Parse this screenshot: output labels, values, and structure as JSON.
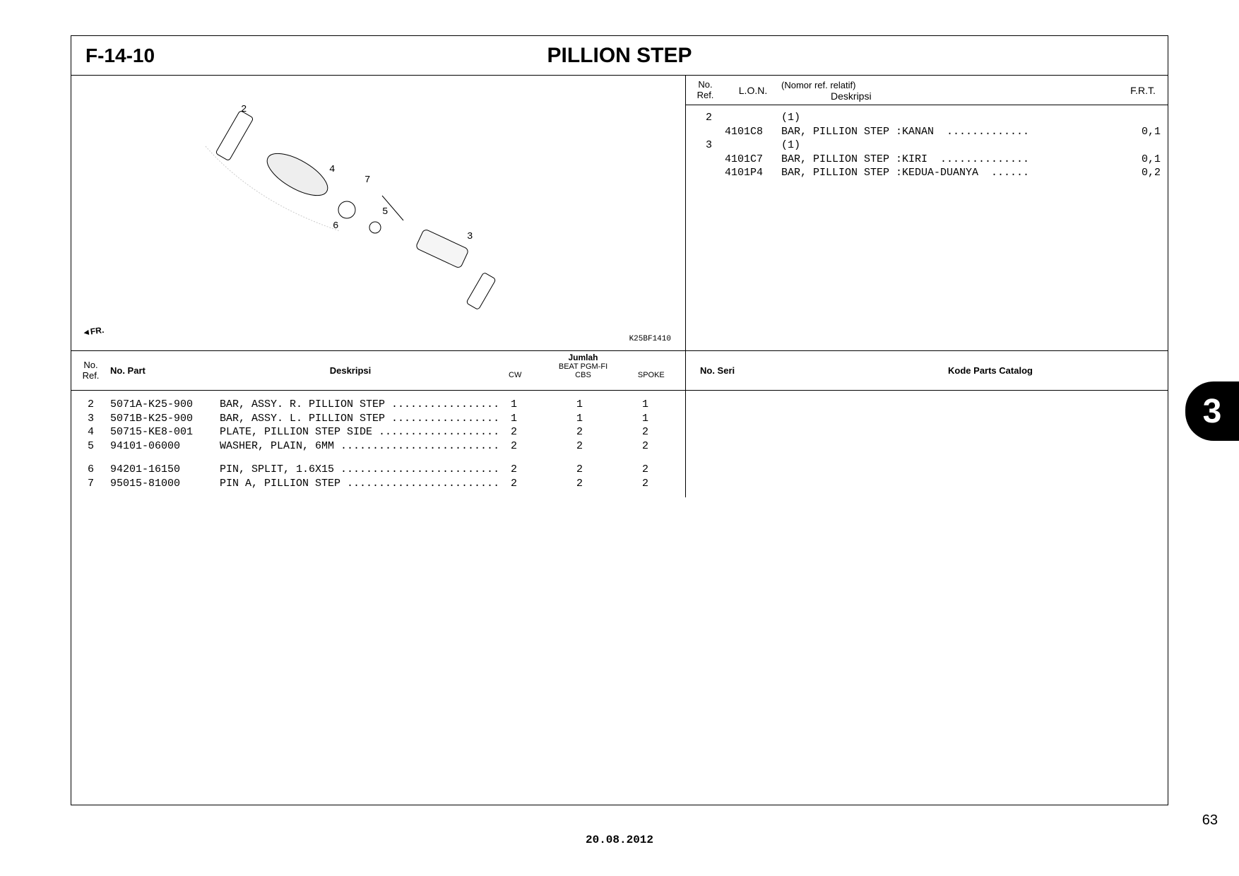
{
  "section_code": "F-14-10",
  "section_title": "PILLION STEP",
  "diagram_code": "K25BF1410",
  "fr_label": "FR.",
  "diagram_callouts": [
    "2",
    "3",
    "4",
    "5",
    "6",
    "7"
  ],
  "ref_header": {
    "no": "No.\nRef.",
    "lon": "L.O.N.",
    "nomor": "(Nomor ref. relatif)",
    "deskripsi": "Deskripsi",
    "frt": "F.R.T."
  },
  "ref_rows": [
    {
      "no": "2",
      "lon": "",
      "desc": "(1)",
      "frt": ""
    },
    {
      "no": "",
      "lon": "4101C8",
      "desc": "BAR, PILLION STEP :KANAN  .............",
      "frt": "0,1"
    },
    {
      "no": "3",
      "lon": "",
      "desc": "(1)",
      "frt": ""
    },
    {
      "no": "",
      "lon": "4101C7",
      "desc": "BAR, PILLION STEP :KIRI  ..............",
      "frt": "0,1"
    },
    {
      "no": "",
      "lon": "4101P4",
      "desc": "BAR, PILLION STEP :KEDUA-DUANYA  ......",
      "frt": "0,2"
    }
  ],
  "parts_header": {
    "no": "No.\nRef.",
    "part": "No. Part",
    "desc": "Deskripsi",
    "qty_top": "Jumlah",
    "qty_mid": "BEAT PGM-FI",
    "qty_cols": [
      "CW",
      "CBS",
      "SPOKE"
    ]
  },
  "parts_rows": [
    {
      "no": "2",
      "part": "5071A-K25-900",
      "desc": "BAR, ASSY. R. PILLION STEP .................",
      "q": [
        "1",
        "1",
        "1"
      ]
    },
    {
      "no": "3",
      "part": "5071B-K25-900",
      "desc": "BAR, ASSY. L. PILLION STEP .................",
      "q": [
        "1",
        "1",
        "1"
      ]
    },
    {
      "no": "4",
      "part": "50715-KE8-001",
      "desc": "PLATE, PILLION STEP SIDE ...................",
      "q": [
        "2",
        "2",
        "2"
      ]
    },
    {
      "no": "5",
      "part": "94101-06000",
      "desc": "WASHER, PLAIN, 6MM .........................",
      "q": [
        "2",
        "2",
        "2"
      ]
    }
  ],
  "parts_rows2": [
    {
      "no": "6",
      "part": "94201-16150",
      "desc": "PIN, SPLIT, 1.6X15 .........................",
      "q": [
        "2",
        "2",
        "2"
      ]
    },
    {
      "no": "7",
      "part": "95015-81000",
      "desc": "PIN A, PILLION STEP ........................",
      "q": [
        "2",
        "2",
        "2"
      ]
    }
  ],
  "catalog_header": {
    "seri": "No. Seri",
    "kode": "Kode Parts Catalog"
  },
  "section_tab": "3",
  "page_number": "63",
  "date": "20.08.2012",
  "colors": {
    "border": "#000000",
    "bg": "#ffffff",
    "tab_bg": "#000000",
    "tab_fg": "#ffffff"
  }
}
